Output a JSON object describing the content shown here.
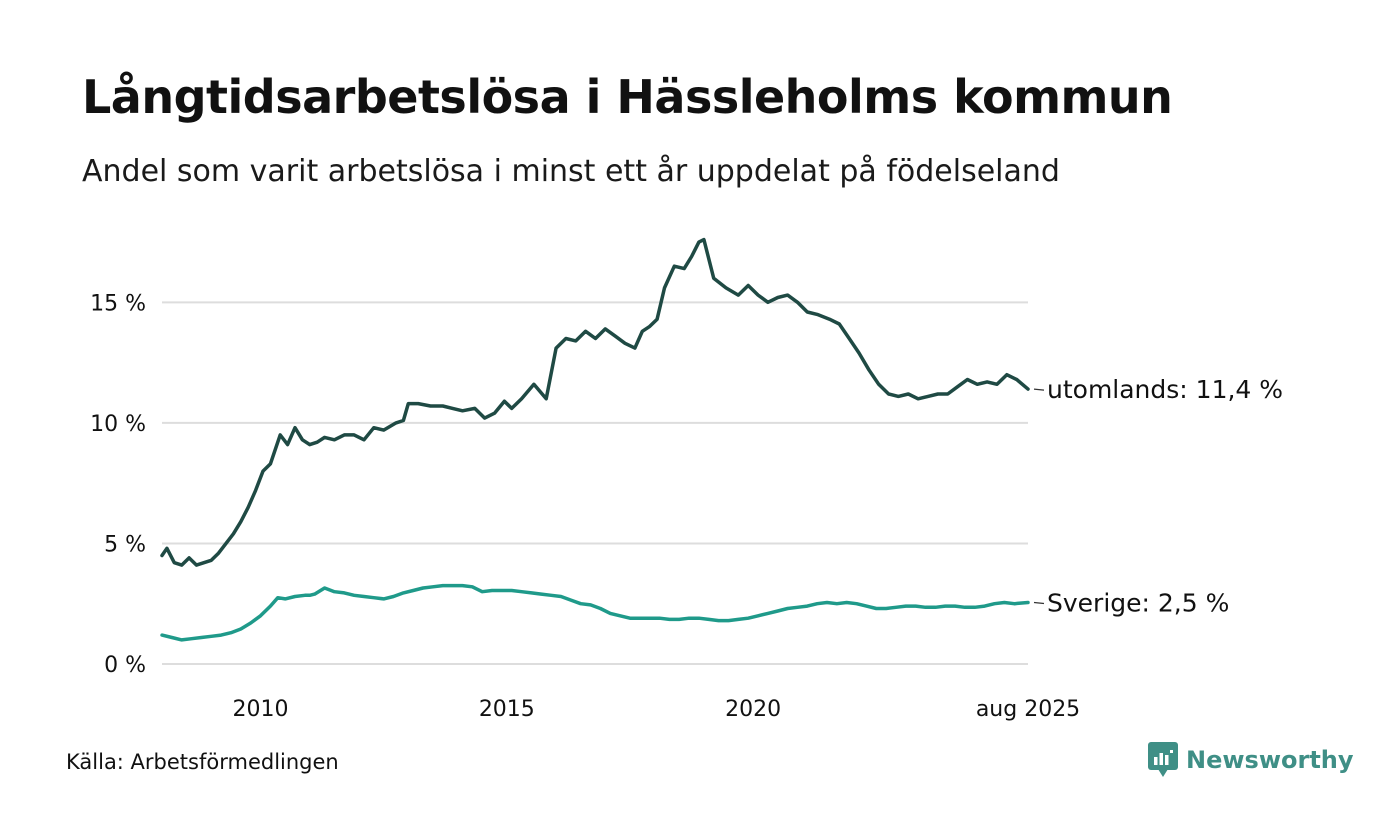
{
  "title": "Långtidsarbetslösa i Hässleholms kommun",
  "subtitle": "Andel som varit arbetslösa i minst ett år uppdelat på födelseland",
  "source": "Källa: Arbetsförmedlingen",
  "brand": "Newsworthy",
  "colors": {
    "utomlands": "#1f4a44",
    "sverige": "#1f9a8a",
    "grid": "#dddddd",
    "brand": "#3f8f86"
  },
  "chart_data": {
    "type": "line",
    "ylim": [
      0,
      18
    ],
    "xlim": [
      2008.0,
      2025.58
    ],
    "yticks": [
      0,
      5,
      10,
      15
    ],
    "ytick_labels": [
      "0 %",
      "5 %",
      "10 %",
      "15 %"
    ],
    "xticks": [
      2010,
      2015,
      2020,
      2025.58
    ],
    "xtick_labels": [
      "2010",
      "2015",
      "2020",
      "aug 2025"
    ],
    "grid": true,
    "series": [
      {
        "key": "utomlands",
        "end_label": "utomlands: 11,4 %",
        "x": [
          2008.0,
          2008.1,
          2008.25,
          2008.4,
          2008.55,
          2008.7,
          2008.85,
          2009.0,
          2009.15,
          2009.3,
          2009.45,
          2009.6,
          2009.75,
          2009.9,
          2010.05,
          2010.2,
          2010.4,
          2010.55,
          2010.7,
          2010.85,
          2011.0,
          2011.15,
          2011.3,
          2011.5,
          2011.7,
          2011.9,
          2012.1,
          2012.3,
          2012.5,
          2012.75,
          2012.9,
          2013.0,
          2013.2,
          2013.45,
          2013.7,
          2013.9,
          2014.1,
          2014.35,
          2014.55,
          2014.75,
          2014.95,
          2015.1,
          2015.3,
          2015.55,
          2015.8,
          2016.0,
          2016.2,
          2016.4,
          2016.6,
          2016.8,
          2017.0,
          2017.2,
          2017.4,
          2017.6,
          2017.75,
          2017.9,
          2018.05,
          2018.2,
          2018.4,
          2018.6,
          2018.75,
          2018.9,
          2019.0,
          2019.2,
          2019.45,
          2019.7,
          2019.9,
          2020.1,
          2020.3,
          2020.5,
          2020.7,
          2020.9,
          2021.1,
          2021.3,
          2021.55,
          2021.75,
          2021.95,
          2022.15,
          2022.35,
          2022.55,
          2022.75,
          2022.95,
          2023.15,
          2023.35,
          2023.55,
          2023.75,
          2023.95,
          2024.15,
          2024.35,
          2024.55,
          2024.75,
          2024.95,
          2025.15,
          2025.35,
          2025.58
        ],
        "values": [
          4.5,
          4.8,
          4.2,
          4.1,
          4.4,
          4.1,
          4.2,
          4.3,
          4.6,
          5.0,
          5.4,
          5.9,
          6.5,
          7.2,
          8.0,
          8.3,
          9.5,
          9.1,
          9.8,
          9.3,
          9.1,
          9.2,
          9.4,
          9.3,
          9.5,
          9.5,
          9.3,
          9.8,
          9.7,
          10.0,
          10.1,
          10.8,
          10.8,
          10.7,
          10.7,
          10.6,
          10.5,
          10.6,
          10.2,
          10.4,
          10.9,
          10.6,
          11.0,
          11.6,
          11.0,
          13.1,
          13.5,
          13.4,
          13.8,
          13.5,
          13.9,
          13.6,
          13.3,
          13.1,
          13.8,
          14.0,
          14.3,
          15.6,
          16.5,
          16.4,
          16.9,
          17.5,
          17.6,
          16.0,
          15.6,
          15.3,
          15.7,
          15.3,
          15.0,
          15.2,
          15.3,
          15.0,
          14.6,
          14.5,
          14.3,
          14.1,
          13.5,
          12.9,
          12.2,
          11.6,
          11.2,
          11.1,
          11.2,
          11.0,
          11.1,
          11.2,
          11.2,
          11.5,
          11.8,
          11.6,
          11.7,
          11.6,
          12.0,
          11.8,
          11.4
        ]
      },
      {
        "key": "sverige",
        "end_label": "Sverige:  2,5 %",
        "x": [
          2008.0,
          2008.2,
          2008.4,
          2008.6,
          2008.8,
          2009.0,
          2009.2,
          2009.4,
          2009.6,
          2009.8,
          2010.0,
          2010.2,
          2010.35,
          2010.5,
          2010.7,
          2010.9,
          2011.0,
          2011.1,
          2011.3,
          2011.5,
          2011.7,
          2011.9,
          2012.1,
          2012.3,
          2012.5,
          2012.7,
          2012.9,
          2013.1,
          2013.3,
          2013.5,
          2013.7,
          2013.9,
          2014.1,
          2014.3,
          2014.5,
          2014.7,
          2014.9,
          2015.1,
          2015.3,
          2015.5,
          2015.7,
          2015.9,
          2016.1,
          2016.3,
          2016.5,
          2016.7,
          2016.9,
          2017.1,
          2017.3,
          2017.5,
          2017.7,
          2017.9,
          2018.1,
          2018.3,
          2018.5,
          2018.7,
          2018.9,
          2019.1,
          2019.3,
          2019.5,
          2019.7,
          2019.9,
          2020.1,
          2020.3,
          2020.5,
          2020.7,
          2020.9,
          2021.1,
          2021.3,
          2021.5,
          2021.7,
          2021.9,
          2022.1,
          2022.3,
          2022.5,
          2022.7,
          2022.9,
          2023.1,
          2023.3,
          2023.5,
          2023.7,
          2023.9,
          2024.1,
          2024.3,
          2024.5,
          2024.7,
          2024.9,
          2025.1,
          2025.3,
          2025.58
        ],
        "values": [
          1.2,
          1.1,
          1.0,
          1.05,
          1.1,
          1.15,
          1.2,
          1.3,
          1.45,
          1.7,
          2.0,
          2.4,
          2.75,
          2.7,
          2.8,
          2.85,
          2.85,
          2.9,
          3.15,
          3.0,
          2.95,
          2.85,
          2.8,
          2.75,
          2.7,
          2.8,
          2.95,
          3.05,
          3.15,
          3.2,
          3.25,
          3.25,
          3.25,
          3.2,
          3.0,
          3.05,
          3.05,
          3.05,
          3.0,
          2.95,
          2.9,
          2.85,
          2.8,
          2.65,
          2.5,
          2.45,
          2.3,
          2.1,
          2.0,
          1.9,
          1.9,
          1.9,
          1.9,
          1.85,
          1.85,
          1.9,
          1.9,
          1.85,
          1.8,
          1.8,
          1.85,
          1.9,
          2.0,
          2.1,
          2.2,
          2.3,
          2.35,
          2.4,
          2.5,
          2.55,
          2.5,
          2.55,
          2.5,
          2.4,
          2.3,
          2.3,
          2.35,
          2.4,
          2.4,
          2.35,
          2.35,
          2.4,
          2.4,
          2.35,
          2.35,
          2.4,
          2.5,
          2.55,
          2.5,
          2.55
        ]
      }
    ]
  }
}
